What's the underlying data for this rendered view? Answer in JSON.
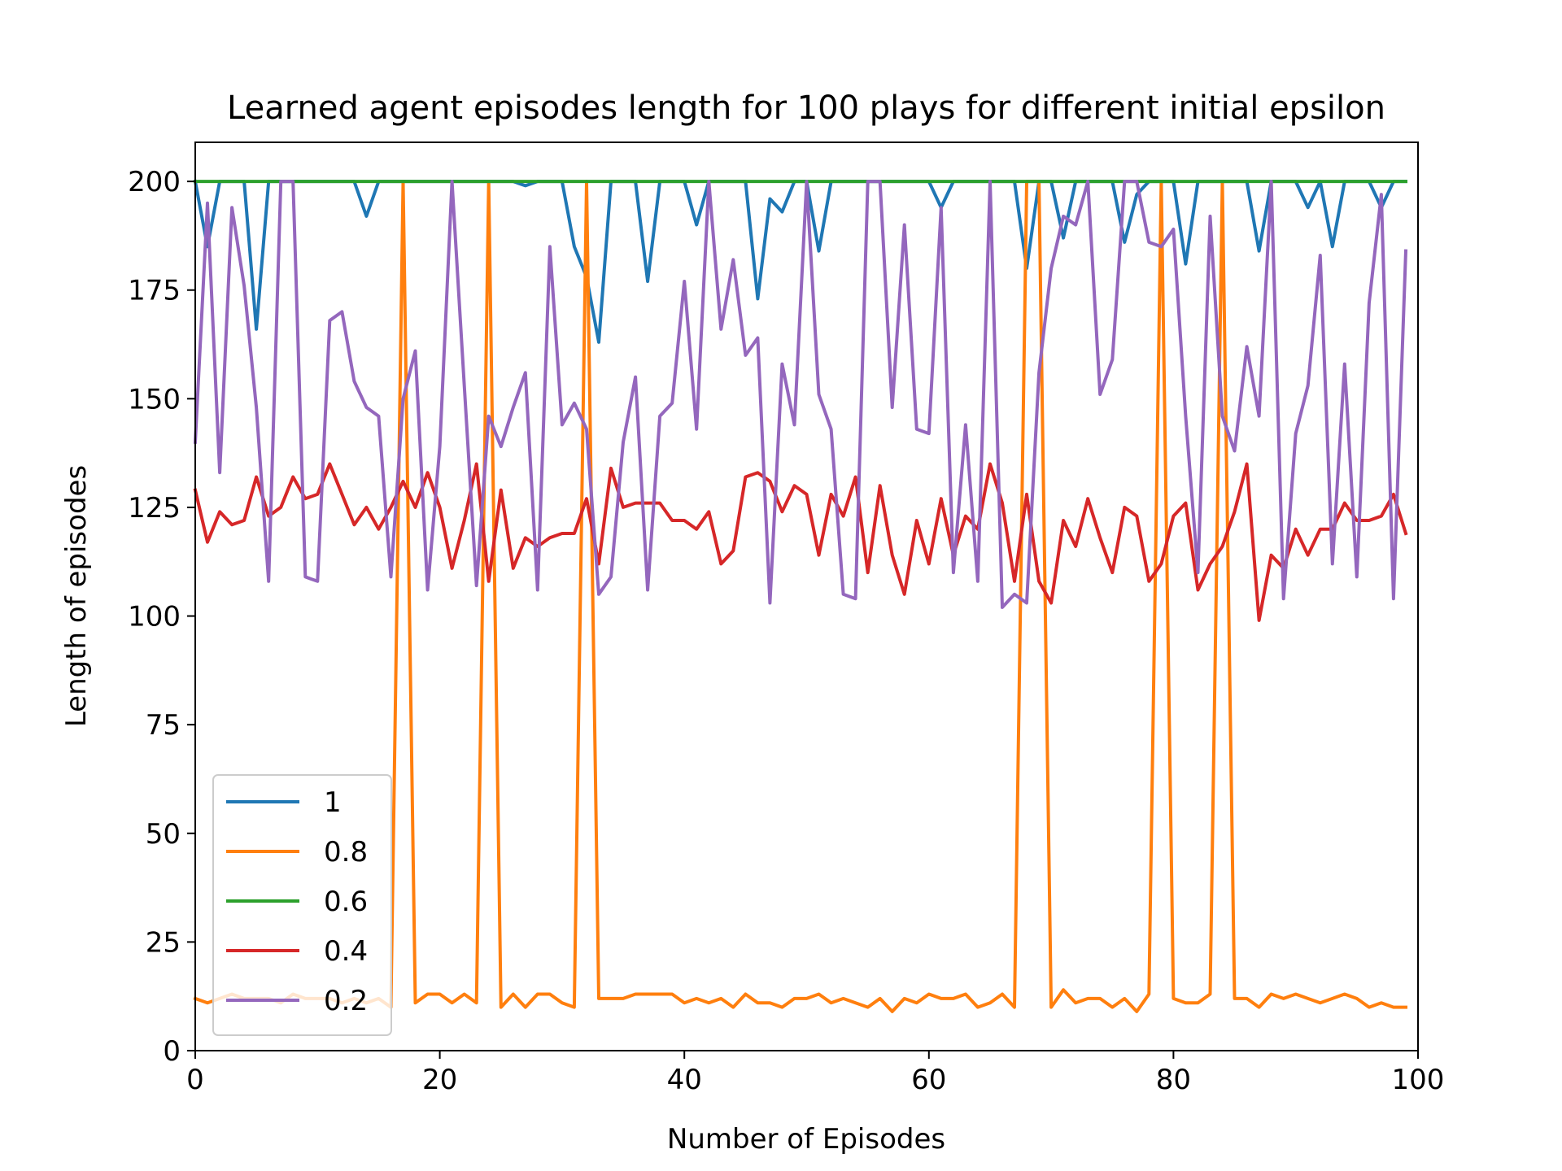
{
  "chart_data": {
    "type": "line",
    "title": "Learned agent episodes length for 100 plays for different initial epsilon",
    "xlabel": "Number of Episodes",
    "ylabel": "Length of episodes",
    "xlim": [
      0,
      100
    ],
    "ylim": [
      0,
      209
    ],
    "xticks": [
      "0",
      "20",
      "40",
      "60",
      "80",
      "100"
    ],
    "yticks": [
      "0",
      "25",
      "50",
      "75",
      "100",
      "125",
      "150",
      "175",
      "200"
    ],
    "grid": false,
    "legend_position": "lower-left",
    "series": [
      {
        "name": "1",
        "color": "#1f77b4",
        "values": [
          200,
          185,
          200,
          200,
          200,
          166,
          200,
          200,
          200,
          200,
          200,
          200,
          200,
          200,
          192,
          200,
          200,
          200,
          200,
          200,
          200,
          200,
          200,
          200,
          200,
          200,
          200,
          199,
          200,
          200,
          200,
          185,
          178,
          163,
          200,
          200,
          200,
          177,
          200,
          200,
          200,
          190,
          200,
          200,
          200,
          200,
          173,
          196,
          193,
          200,
          200,
          184,
          200,
          200,
          200,
          200,
          200,
          200,
          200,
          200,
          200,
          194,
          200,
          200,
          200,
          200,
          200,
          200,
          180,
          200,
          200,
          187,
          200,
          200,
          200,
          200,
          186,
          197,
          200,
          200,
          200,
          181,
          200,
          200,
          200,
          200,
          200,
          184,
          200,
          200,
          200,
          194,
          200,
          185,
          200,
          200,
          200,
          194,
          200,
          200
        ]
      },
      {
        "name": "0.8",
        "color": "#ff7f0e",
        "values": [
          12,
          11,
          12,
          13,
          12,
          12,
          12,
          11,
          13,
          12,
          12,
          12,
          11,
          12,
          11,
          12,
          10,
          200,
          11,
          13,
          13,
          11,
          13,
          11,
          200,
          10,
          13,
          10,
          13,
          13,
          11,
          10,
          200,
          12,
          12,
          12,
          13,
          13,
          13,
          13,
          11,
          12,
          11,
          12,
          10,
          13,
          11,
          11,
          10,
          12,
          12,
          13,
          11,
          12,
          11,
          10,
          12,
          9,
          12,
          11,
          13,
          12,
          12,
          13,
          10,
          11,
          13,
          10,
          200,
          200,
          10,
          14,
          11,
          12,
          12,
          10,
          12,
          9,
          13,
          200,
          12,
          11,
          11,
          13,
          200,
          12,
          12,
          10,
          13,
          12,
          13,
          12,
          11,
          12,
          13,
          12,
          10,
          11,
          10,
          10
        ]
      },
      {
        "name": "0.6",
        "color": "#2ca02c",
        "values": [
          200,
          200,
          200,
          200,
          200,
          200,
          200,
          200,
          200,
          200,
          200,
          200,
          200,
          200,
          200,
          200,
          200,
          200,
          200,
          200,
          200,
          200,
          200,
          200,
          200,
          200,
          200,
          200,
          200,
          200,
          200,
          200,
          200,
          200,
          200,
          200,
          200,
          200,
          200,
          200,
          200,
          200,
          200,
          200,
          200,
          200,
          200,
          200,
          200,
          200,
          200,
          200,
          200,
          200,
          200,
          200,
          200,
          200,
          200,
          200,
          200,
          200,
          200,
          200,
          200,
          200,
          200,
          200,
          200,
          200,
          200,
          200,
          200,
          200,
          200,
          200,
          200,
          200,
          200,
          200,
          200,
          200,
          200,
          200,
          200,
          200,
          200,
          200,
          200,
          200,
          200,
          200,
          200,
          200,
          200,
          200,
          200,
          200,
          200,
          200
        ]
      },
      {
        "name": "0.4",
        "color": "#d62728",
        "values": [
          129,
          117,
          124,
          121,
          122,
          132,
          123,
          125,
          132,
          127,
          128,
          135,
          128,
          121,
          125,
          120,
          125,
          131,
          125,
          133,
          125,
          111,
          122,
          135,
          108,
          129,
          111,
          118,
          116,
          118,
          119,
          119,
          127,
          112,
          134,
          125,
          126,
          126,
          126,
          122,
          122,
          120,
          124,
          112,
          115,
          132,
          133,
          131,
          124,
          130,
          128,
          114,
          128,
          123,
          132,
          110,
          130,
          114,
          105,
          122,
          112,
          127,
          114,
          123,
          120,
          135,
          126,
          108,
          128,
          108,
          103,
          122,
          116,
          127,
          118,
          110,
          125,
          123,
          108,
          112,
          123,
          126,
          106,
          112,
          116,
          124,
          135,
          99,
          114,
          111,
          120,
          114,
          120,
          120,
          126,
          122,
          122,
          123,
          128,
          119
        ]
      },
      {
        "name": "0.2",
        "color": "#9467bd",
        "values": [
          140,
          195,
          133,
          194,
          176,
          148,
          108,
          200,
          200,
          109,
          108,
          168,
          170,
          154,
          148,
          146,
          109,
          150,
          161,
          106,
          139,
          200,
          153,
          107,
          146,
          139,
          148,
          156,
          106,
          185,
          144,
          149,
          143,
          105,
          109,
          140,
          155,
          106,
          146,
          149,
          177,
          143,
          200,
          166,
          182,
          160,
          164,
          103,
          158,
          144,
          200,
          151,
          143,
          105,
          104,
          200,
          200,
          148,
          190,
          143,
          142,
          194,
          110,
          144,
          108,
          200,
          102,
          105,
          103,
          156,
          180,
          192,
          190,
          200,
          151,
          159,
          200,
          200,
          186,
          185,
          189,
          146,
          110,
          192,
          146,
          138,
          162,
          146,
          200,
          104,
          142,
          153,
          183,
          112,
          158,
          109,
          172,
          197,
          104,
          184
        ]
      }
    ]
  }
}
